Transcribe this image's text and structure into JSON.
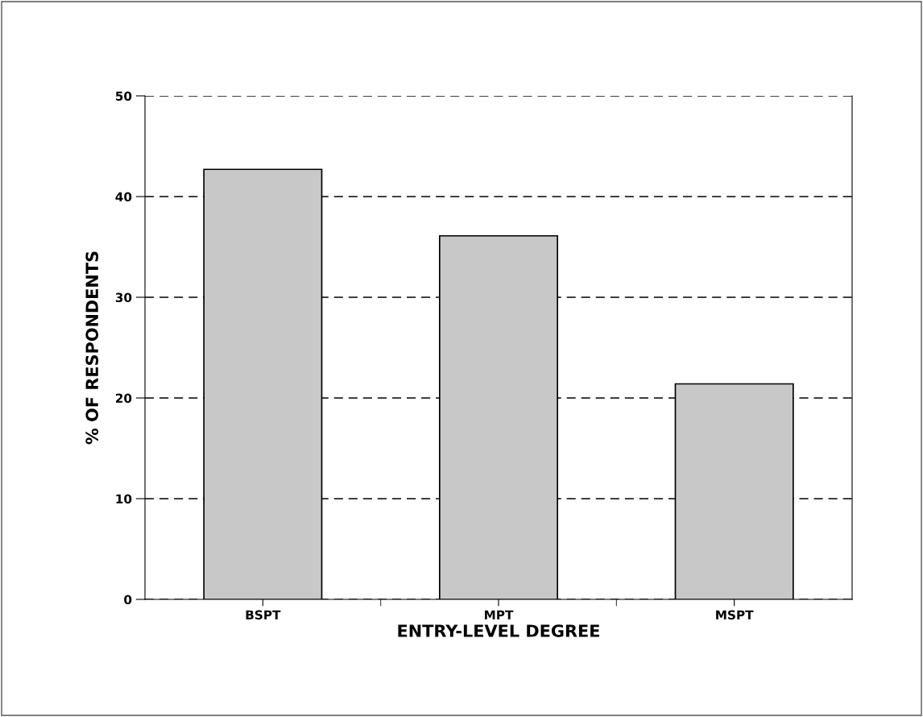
{
  "chart_data": {
    "type": "bar",
    "xlabel": "ENTRY-LEVEL DEGREE",
    "ylabel": "% OF RESPONDENTS",
    "categories": [
      "BSPT",
      "MPT",
      "MSPT"
    ],
    "values": [
      42.7,
      36.1,
      21.4
    ],
    "color": "#c8c8c8",
    "ylim": [
      0,
      50
    ],
    "yticks": [
      0,
      10,
      20,
      30,
      40,
      50
    ],
    "grid": "y"
  }
}
